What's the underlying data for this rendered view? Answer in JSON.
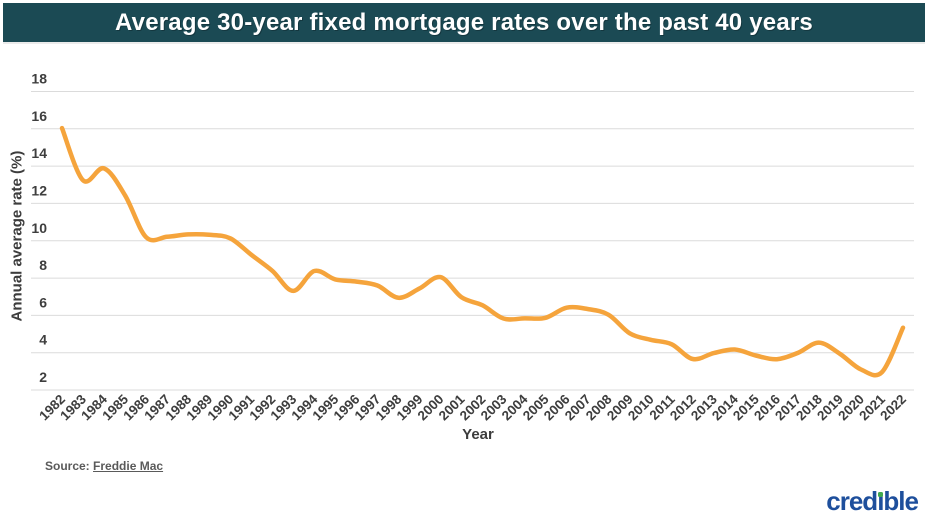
{
  "colors": {
    "header_bg": "#1B4A54",
    "header_text": "#FFFFFF",
    "grid": "#DBDBDB",
    "tick_text": "#3E3E3E",
    "axis_title_text": "#3C3C3C",
    "source_text": "#5A5A5A",
    "logo_blue": "#1E4F9C",
    "logo_green": "#3FA94F"
  },
  "chart_data": {
    "type": "line",
    "title": "Average 30-year fixed mortgage rates over the past 40 years",
    "xlabel": "Year",
    "ylabel": "Annual average rate (%)",
    "ylim": [
      2,
      18
    ],
    "ytick_step": 2,
    "grid": true,
    "legend": false,
    "line_color": "#F5A43C",
    "categories": [
      "1982",
      "1983",
      "1984",
      "1985",
      "1986",
      "1987",
      "1988",
      "1989",
      "1990",
      "1991",
      "1992",
      "1993",
      "1994",
      "1995",
      "1996",
      "1997",
      "1998",
      "1999",
      "2000",
      "2001",
      "2002",
      "2003",
      "2004",
      "2005",
      "2006",
      "2007",
      "2008",
      "2009",
      "2010",
      "2011",
      "2012",
      "2013",
      "2014",
      "2015",
      "2016",
      "2017",
      "2018",
      "2019",
      "2020",
      "2021",
      "2022"
    ],
    "values": [
      16.04,
      13.24,
      13.88,
      12.43,
      10.19,
      10.21,
      10.34,
      10.32,
      10.13,
      9.25,
      8.39,
      7.31,
      8.38,
      7.93,
      7.81,
      7.6,
      6.94,
      7.44,
      8.05,
      6.97,
      6.54,
      5.83,
      5.84,
      5.87,
      6.41,
      6.34,
      6.03,
      5.04,
      4.69,
      4.45,
      3.66,
      3.98,
      4.17,
      3.85,
      3.65,
      3.99,
      4.54,
      3.94,
      3.1,
      2.96,
      5.34
    ]
  },
  "source": {
    "prefix": "Source:",
    "link_text": "Freddie Mac"
  },
  "logo": {
    "part1": "cred",
    "dotless_i": "ı",
    "part2": "ble"
  }
}
